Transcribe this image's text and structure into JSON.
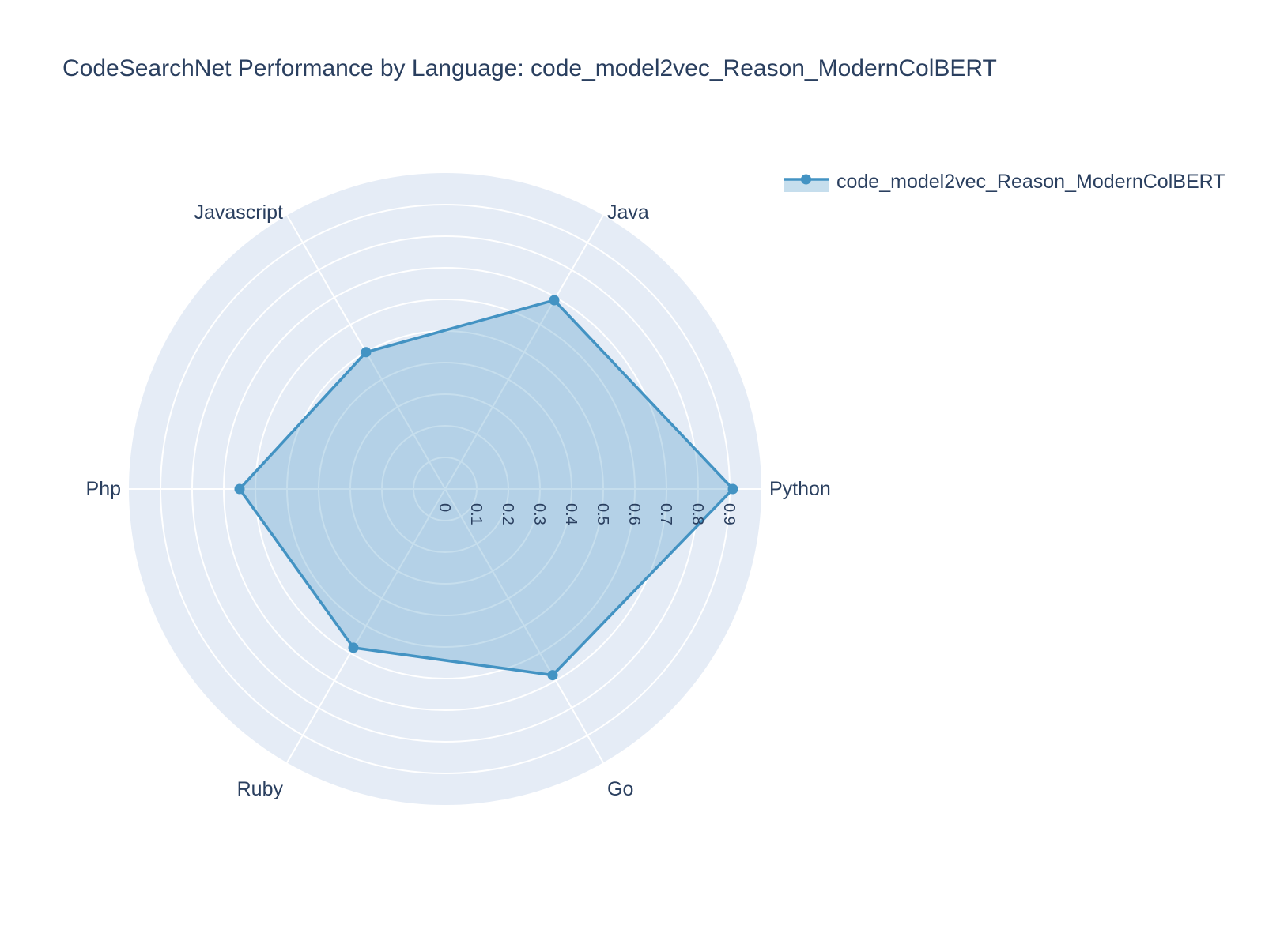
{
  "title": "CodeSearchNet Performance by Language: code_model2vec_Reason_ModernColBERT",
  "legend": {
    "items": [
      {
        "label": "code_model2vec_Reason_ModernColBERT",
        "color": "#4393c3"
      }
    ]
  },
  "colors": {
    "trace_line": "#4393c3",
    "trace_fill": "rgba(67,147,195,0.30)",
    "polar_background": "#e5ecf6",
    "gridline": "#ffffff",
    "text": "#2a3f5f"
  },
  "chart_data": {
    "type": "radar",
    "title": "CodeSearchNet Performance by Language: code_model2vec_Reason_ModernColBERT",
    "categories": [
      "Python",
      "Java",
      "Javascript",
      "Php",
      "Ruby",
      "Go"
    ],
    "series": [
      {
        "name": "code_model2vec_Reason_ModernColBERT",
        "values": [
          0.91,
          0.69,
          0.5,
          0.65,
          0.58,
          0.68
        ]
      }
    ],
    "radial_ticks": [
      0,
      0.1,
      0.2,
      0.3,
      0.4,
      0.5,
      0.6,
      0.7,
      0.8,
      0.9
    ],
    "radial_tick_labels": [
      "0",
      "0.1",
      "0.2",
      "0.3",
      "0.4",
      "0.5",
      "0.6",
      "0.7",
      "0.8",
      "0.9"
    ],
    "radial_range": [
      0,
      1.0
    ],
    "angle_offset_deg": 0,
    "angular_direction": "counterclockwise",
    "grid": true,
    "legend_position": "top-right"
  }
}
